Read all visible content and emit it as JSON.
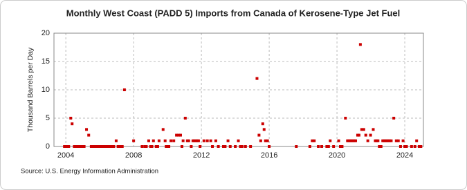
{
  "chart_data": {
    "type": "scatter",
    "title": "Monthly West Coast (PADD 5) Imports from Canada of Kerosene-Type Jet Fuel",
    "y_label": "Thousand Barrels per Day",
    "source": "Source: U.S. Energy Information Administration",
    "color": "#cc0000",
    "grid": true,
    "xlim": [
      2003.3,
      2025.1
    ],
    "xticks": [
      2004,
      2008,
      2012,
      2016,
      2020,
      2024
    ],
    "ylim": [
      0,
      20
    ],
    "yticks": [
      0,
      5,
      10,
      15,
      20
    ],
    "x": [
      2003.92,
      2004.0,
      2004.08,
      2004.17,
      2004.29,
      2004.37,
      2004.5,
      2004.58,
      2004.67,
      2004.75,
      2004.83,
      2004.92,
      2005.0,
      2005.08,
      2005.22,
      2005.35,
      2005.5,
      2005.58,
      2005.67,
      2005.75,
      2005.83,
      2005.92,
      2006.0,
      2006.08,
      2006.17,
      2006.25,
      2006.33,
      2006.42,
      2006.5,
      2006.58,
      2006.67,
      2006.75,
      2006.83,
      2006.97,
      2007.08,
      2007.17,
      2007.25,
      2007.33,
      2007.46,
      2008.0,
      2008.5,
      2008.67,
      2008.75,
      2008.89,
      2009.0,
      2009.08,
      2009.17,
      2009.33,
      2009.42,
      2009.5,
      2009.74,
      2009.86,
      2009.92,
      2010.0,
      2010.08,
      2010.2,
      2010.37,
      2010.53,
      2010.65,
      2010.77,
      2010.85,
      2010.92,
      2011.05,
      2011.17,
      2011.25,
      2011.4,
      2011.5,
      2011.58,
      2011.67,
      2011.75,
      2011.83,
      2011.92,
      2012.15,
      2012.35,
      2012.55,
      2012.65,
      2012.85,
      2013.0,
      2013.3,
      2013.4,
      2013.57,
      2013.7,
      2014.0,
      2014.18,
      2014.3,
      2014.4,
      2014.6,
      2014.9,
      2015.28,
      2015.4,
      2015.5,
      2015.62,
      2015.7,
      2015.78,
      2015.9,
      2016.0,
      2017.6,
      2018.4,
      2018.54,
      2018.66,
      2018.9,
      2019.1,
      2019.4,
      2019.5,
      2019.6,
      2019.8,
      2020.1,
      2020.2,
      2020.3,
      2020.5,
      2020.62,
      2020.7,
      2020.78,
      2020.86,
      2020.94,
      2021.02,
      2021.1,
      2021.22,
      2021.3,
      2021.38,
      2021.46,
      2021.58,
      2021.7,
      2021.82,
      2021.98,
      2022.14,
      2022.26,
      2022.34,
      2022.42,
      2022.5,
      2022.6,
      2022.7,
      2022.78,
      2022.86,
      2022.94,
      2023.02,
      2023.1,
      2023.2,
      2023.35,
      2023.5,
      2023.62,
      2023.75,
      2023.9,
      2024.0,
      2024.1,
      2024.4,
      2024.6,
      2024.7,
      2024.85,
      2024.95
    ],
    "values": [
      0,
      0,
      0,
      0,
      5,
      4,
      0,
      0,
      0,
      0,
      0,
      0,
      0,
      0,
      3,
      2,
      0,
      0,
      0,
      0,
      0,
      0,
      0,
      0,
      0,
      0,
      0,
      0,
      0,
      0,
      0,
      0,
      0,
      1,
      0,
      0,
      0,
      0,
      10,
      1,
      0,
      0,
      0,
      1,
      0,
      0,
      1,
      0,
      0,
      1,
      3,
      1,
      0,
      0,
      0,
      1,
      1,
      2,
      2,
      2,
      0,
      1,
      5,
      1,
      1,
      0,
      1,
      1,
      1,
      1,
      1,
      0,
      1,
      1,
      1,
      0,
      1,
      0,
      0,
      0,
      1,
      0,
      0,
      1,
      0,
      0,
      0,
      0,
      12,
      2,
      1,
      4,
      3,
      1,
      1,
      0,
      0,
      0,
      1,
      1,
      0,
      0,
      0,
      0,
      1,
      0,
      1,
      0,
      0,
      5,
      1,
      1,
      1,
      1,
      1,
      1,
      1,
      2,
      2,
      18,
      3,
      3,
      2,
      1,
      2,
      3,
      1,
      1,
      1,
      0,
      0,
      1,
      1,
      1,
      1,
      1,
      1,
      1,
      5,
      1,
      1,
      0,
      1,
      0,
      0,
      0,
      0,
      1,
      0,
      0
    ]
  }
}
